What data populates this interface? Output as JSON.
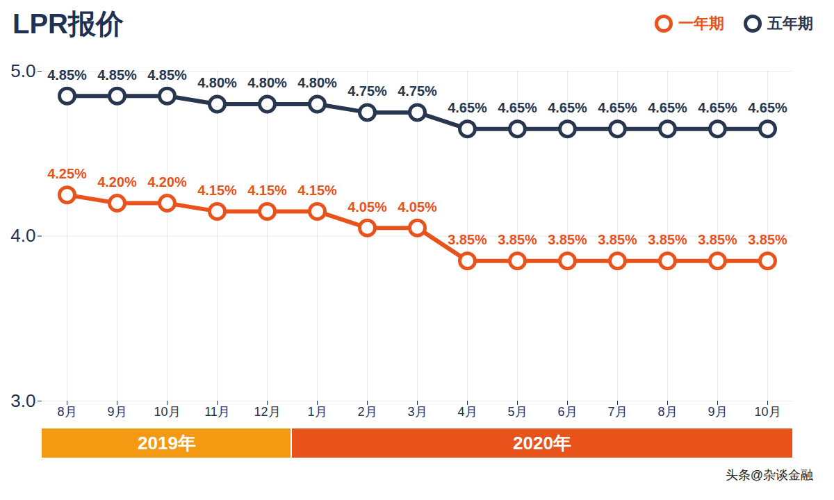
{
  "chart_data": {
    "type": "line",
    "title": "LPR报价",
    "categories": [
      "8月",
      "9月",
      "10月",
      "11月",
      "12月",
      "1月",
      "2月",
      "3月",
      "4月",
      "5月",
      "6月",
      "7月",
      "8月",
      "9月",
      "10月"
    ],
    "years": [
      "2019年",
      "2019年",
      "2019年",
      "2019年",
      "2019年",
      "2020年",
      "2020年",
      "2020年",
      "2020年",
      "2020年",
      "2020年",
      "2020年",
      "2020年",
      "2020年",
      "2020年"
    ],
    "series": [
      {
        "name": "一年期",
        "color": "#e8531c",
        "marker": "circle",
        "values": [
          4.25,
          4.2,
          4.2,
          4.15,
          4.15,
          4.15,
          4.05,
          4.05,
          3.85,
          3.85,
          3.85,
          3.85,
          3.85,
          3.85,
          3.85
        ],
        "value_labels": [
          "4.25%",
          "4.20%",
          "4.20%",
          "4.15%",
          "4.15%",
          "4.15%",
          "4.05%",
          "4.05%",
          "3.85%",
          "3.85%",
          "3.85%",
          "3.85%",
          "3.85%",
          "3.85%",
          "3.85%"
        ]
      },
      {
        "name": "五年期",
        "color": "#283650",
        "marker": "circle",
        "values": [
          4.85,
          4.85,
          4.85,
          4.8,
          4.8,
          4.8,
          4.75,
          4.75,
          4.65,
          4.65,
          4.65,
          4.65,
          4.65,
          4.65,
          4.65
        ],
        "value_labels": [
          "4.85%",
          "4.85%",
          "4.85%",
          "4.80%",
          "4.80%",
          "4.80%",
          "4.75%",
          "4.75%",
          "4.65%",
          "4.65%",
          "4.65%",
          "4.65%",
          "4.65%",
          "4.65%",
          "4.65%"
        ]
      }
    ],
    "ylim": [
      3,
      5
    ],
    "yticks": [
      3,
      4,
      5
    ],
    "grid": true,
    "legend": "top-right",
    "data_labels": true,
    "annotations": [
      "头条@杂谈金融"
    ]
  }
}
